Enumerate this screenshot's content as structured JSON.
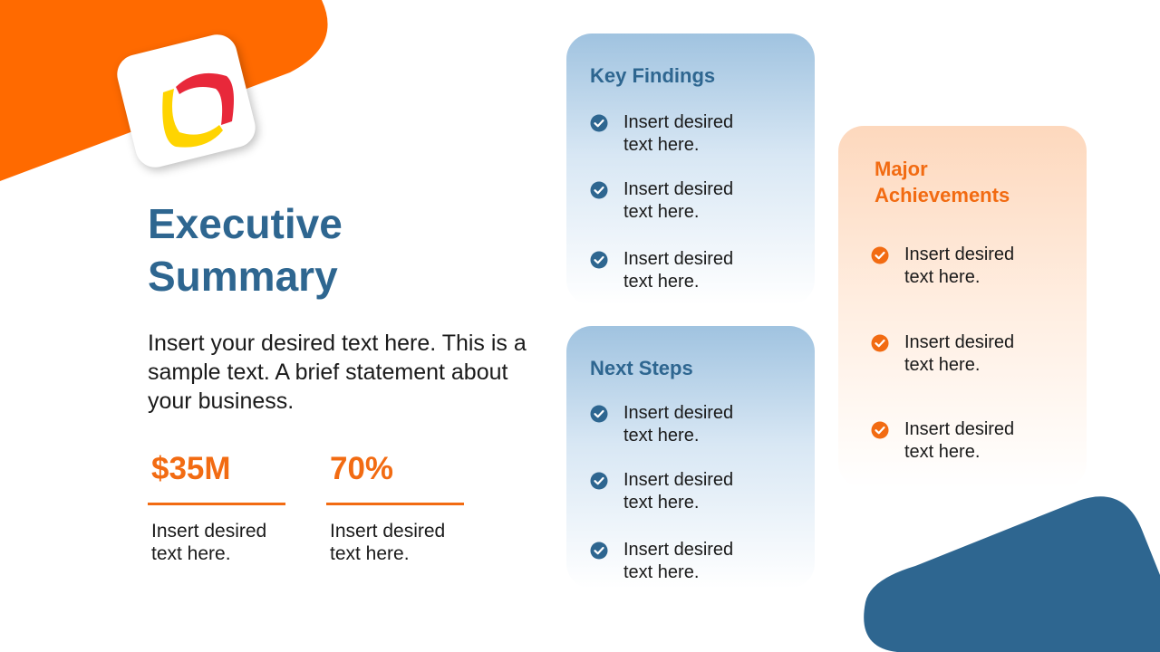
{
  "colors": {
    "navy": "#2e6690",
    "orange": "#f26b12",
    "red": "#e8283a",
    "yellow": "#ffd400"
  },
  "title": {
    "line1": "Executive",
    "line2": "Summary"
  },
  "intro": "Insert your desired text here. This is a sample text. A brief statement about your business.",
  "stats": [
    {
      "value": "$35M",
      "desc": "Insert desired text here."
    },
    {
      "value": "70%",
      "desc": "Insert desired text here."
    }
  ],
  "key_findings": {
    "title": "Key Findings",
    "items": [
      "Insert desired text here.",
      "Insert desired text here.",
      "Insert desired text here."
    ]
  },
  "next_steps": {
    "title": "Next Steps",
    "items": [
      "Insert desired text here.",
      "Insert desired text here.",
      "Insert desired text here."
    ]
  },
  "major_achievements": {
    "title": "Major Achievements",
    "items": [
      "Insert desired text here.",
      "Insert desired text here.",
      "Insert desired text here."
    ]
  },
  "icons": {
    "check": "check-circle-icon",
    "logo": "brand-logo"
  }
}
